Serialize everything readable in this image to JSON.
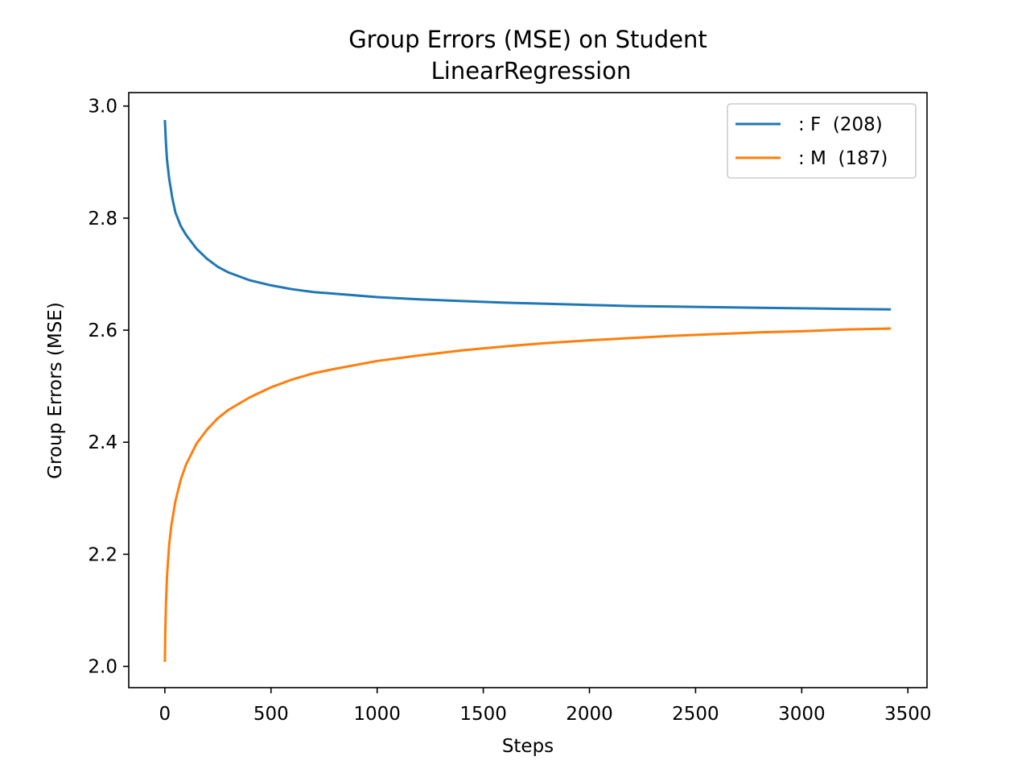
{
  "chart_data": {
    "type": "line",
    "title_lines": [
      "Group Errors (MSE) on Student",
      "LinearRegression"
    ],
    "xlabel": "Steps",
    "ylabel": "Group Errors (MSE)",
    "xlim": [
      -170,
      3590
    ],
    "ylim": [
      1.962,
      3.024
    ],
    "xticks": [
      0,
      500,
      1000,
      1500,
      2000,
      2500,
      3000,
      3500
    ],
    "xtick_labels": [
      "0",
      "500",
      "1000",
      "1500",
      "2000",
      "2500",
      "3000",
      "3500"
    ],
    "yticks": [
      2.0,
      2.2,
      2.4,
      2.6,
      2.8,
      3.0
    ],
    "ytick_labels": [
      "2.0",
      "2.2",
      "2.4",
      "2.6",
      "2.8",
      "3.0"
    ],
    "grid": false,
    "legend_position": "top-right",
    "series": [
      {
        "name": ": F  (208)",
        "color": "#1f77b4",
        "x": [
          0,
          5,
          10,
          20,
          35,
          50,
          75,
          100,
          150,
          200,
          250,
          300,
          400,
          500,
          600,
          700,
          800,
          1000,
          1200,
          1400,
          1600,
          1800,
          2000,
          2200,
          2400,
          2600,
          2800,
          3000,
          3200,
          3420
        ],
        "y": [
          2.975,
          2.935,
          2.905,
          2.872,
          2.836,
          2.81,
          2.786,
          2.77,
          2.745,
          2.727,
          2.713,
          2.703,
          2.689,
          2.68,
          2.673,
          2.668,
          2.665,
          2.659,
          2.655,
          2.652,
          2.649,
          2.647,
          2.645,
          2.643,
          2.642,
          2.641,
          2.64,
          2.639,
          2.638,
          2.637
        ]
      },
      {
        "name": ": M  (187)",
        "color": "#ff7f0e",
        "x": [
          0,
          2,
          5,
          10,
          20,
          30,
          50,
          75,
          100,
          150,
          200,
          250,
          300,
          400,
          500,
          600,
          700,
          800,
          1000,
          1200,
          1400,
          1600,
          1800,
          2000,
          2200,
          2400,
          2600,
          2800,
          3000,
          3200,
          3420
        ],
        "y": [
          2.008,
          2.06,
          2.11,
          2.16,
          2.215,
          2.25,
          2.295,
          2.333,
          2.36,
          2.398,
          2.423,
          2.443,
          2.458,
          2.48,
          2.498,
          2.512,
          2.523,
          2.531,
          2.545,
          2.555,
          2.564,
          2.571,
          2.577,
          2.582,
          2.586,
          2.59,
          2.593,
          2.596,
          2.598,
          2.601,
          2.603
        ]
      }
    ]
  }
}
